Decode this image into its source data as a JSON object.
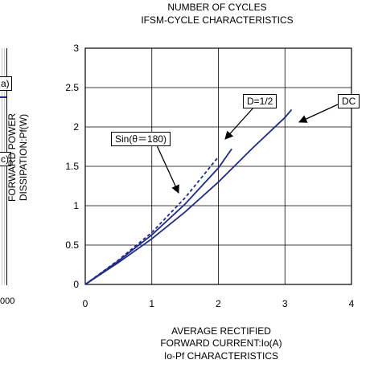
{
  "left_panel": {
    "tick_fragment": "000",
    "label_a": "a)",
    "label_c": "c)"
  },
  "header": {
    "top_title": "NUMBER OF CYCLES",
    "top_subtitle": "IFSM-CYCLE CHARACTERISTICS"
  },
  "chart_data": {
    "type": "line",
    "title": "Io-Pf CHARACTERISTICS",
    "xlabel_line1": "AVERAGE RECTIFIED",
    "xlabel_line2": "FORWARD CURRENT:Io(A)",
    "ylabel_line1": "FORWARD POWER",
    "ylabel_line2": "DISSIPATION:Pf(W)",
    "xlim": [
      0,
      4
    ],
    "ylim": [
      0,
      3
    ],
    "x_ticks": [
      "0",
      "1",
      "2",
      "3",
      "4"
    ],
    "y_ticks": [
      "0",
      "0.5",
      "1",
      "1.5",
      "2",
      "2.5",
      "3"
    ],
    "grid": true,
    "series": [
      {
        "name": "DC",
        "style": "solid",
        "color": "#1f2a8c",
        "x": [
          0,
          0.5,
          1,
          1.5,
          2,
          2.5,
          3,
          3.1
        ],
        "y": [
          0,
          0.28,
          0.58,
          0.92,
          1.3,
          1.72,
          2.12,
          2.22
        ]
      },
      {
        "name": "D=1/2",
        "style": "solid",
        "color": "#1f2a8c",
        "x": [
          0,
          0.5,
          1,
          1.5,
          2,
          2.2
        ],
        "y": [
          0,
          0.3,
          0.63,
          1.02,
          1.48,
          1.72
        ]
      },
      {
        "name": "Sin(θ=180)",
        "style": "dashed",
        "color": "#1f2a8c",
        "x": [
          0,
          0.5,
          1,
          1.5,
          2
        ],
        "y": [
          0,
          0.31,
          0.66,
          1.1,
          1.62
        ]
      }
    ],
    "annotations": [
      "DC",
      "D=1/2",
      "Sin(θ＝180)"
    ]
  }
}
